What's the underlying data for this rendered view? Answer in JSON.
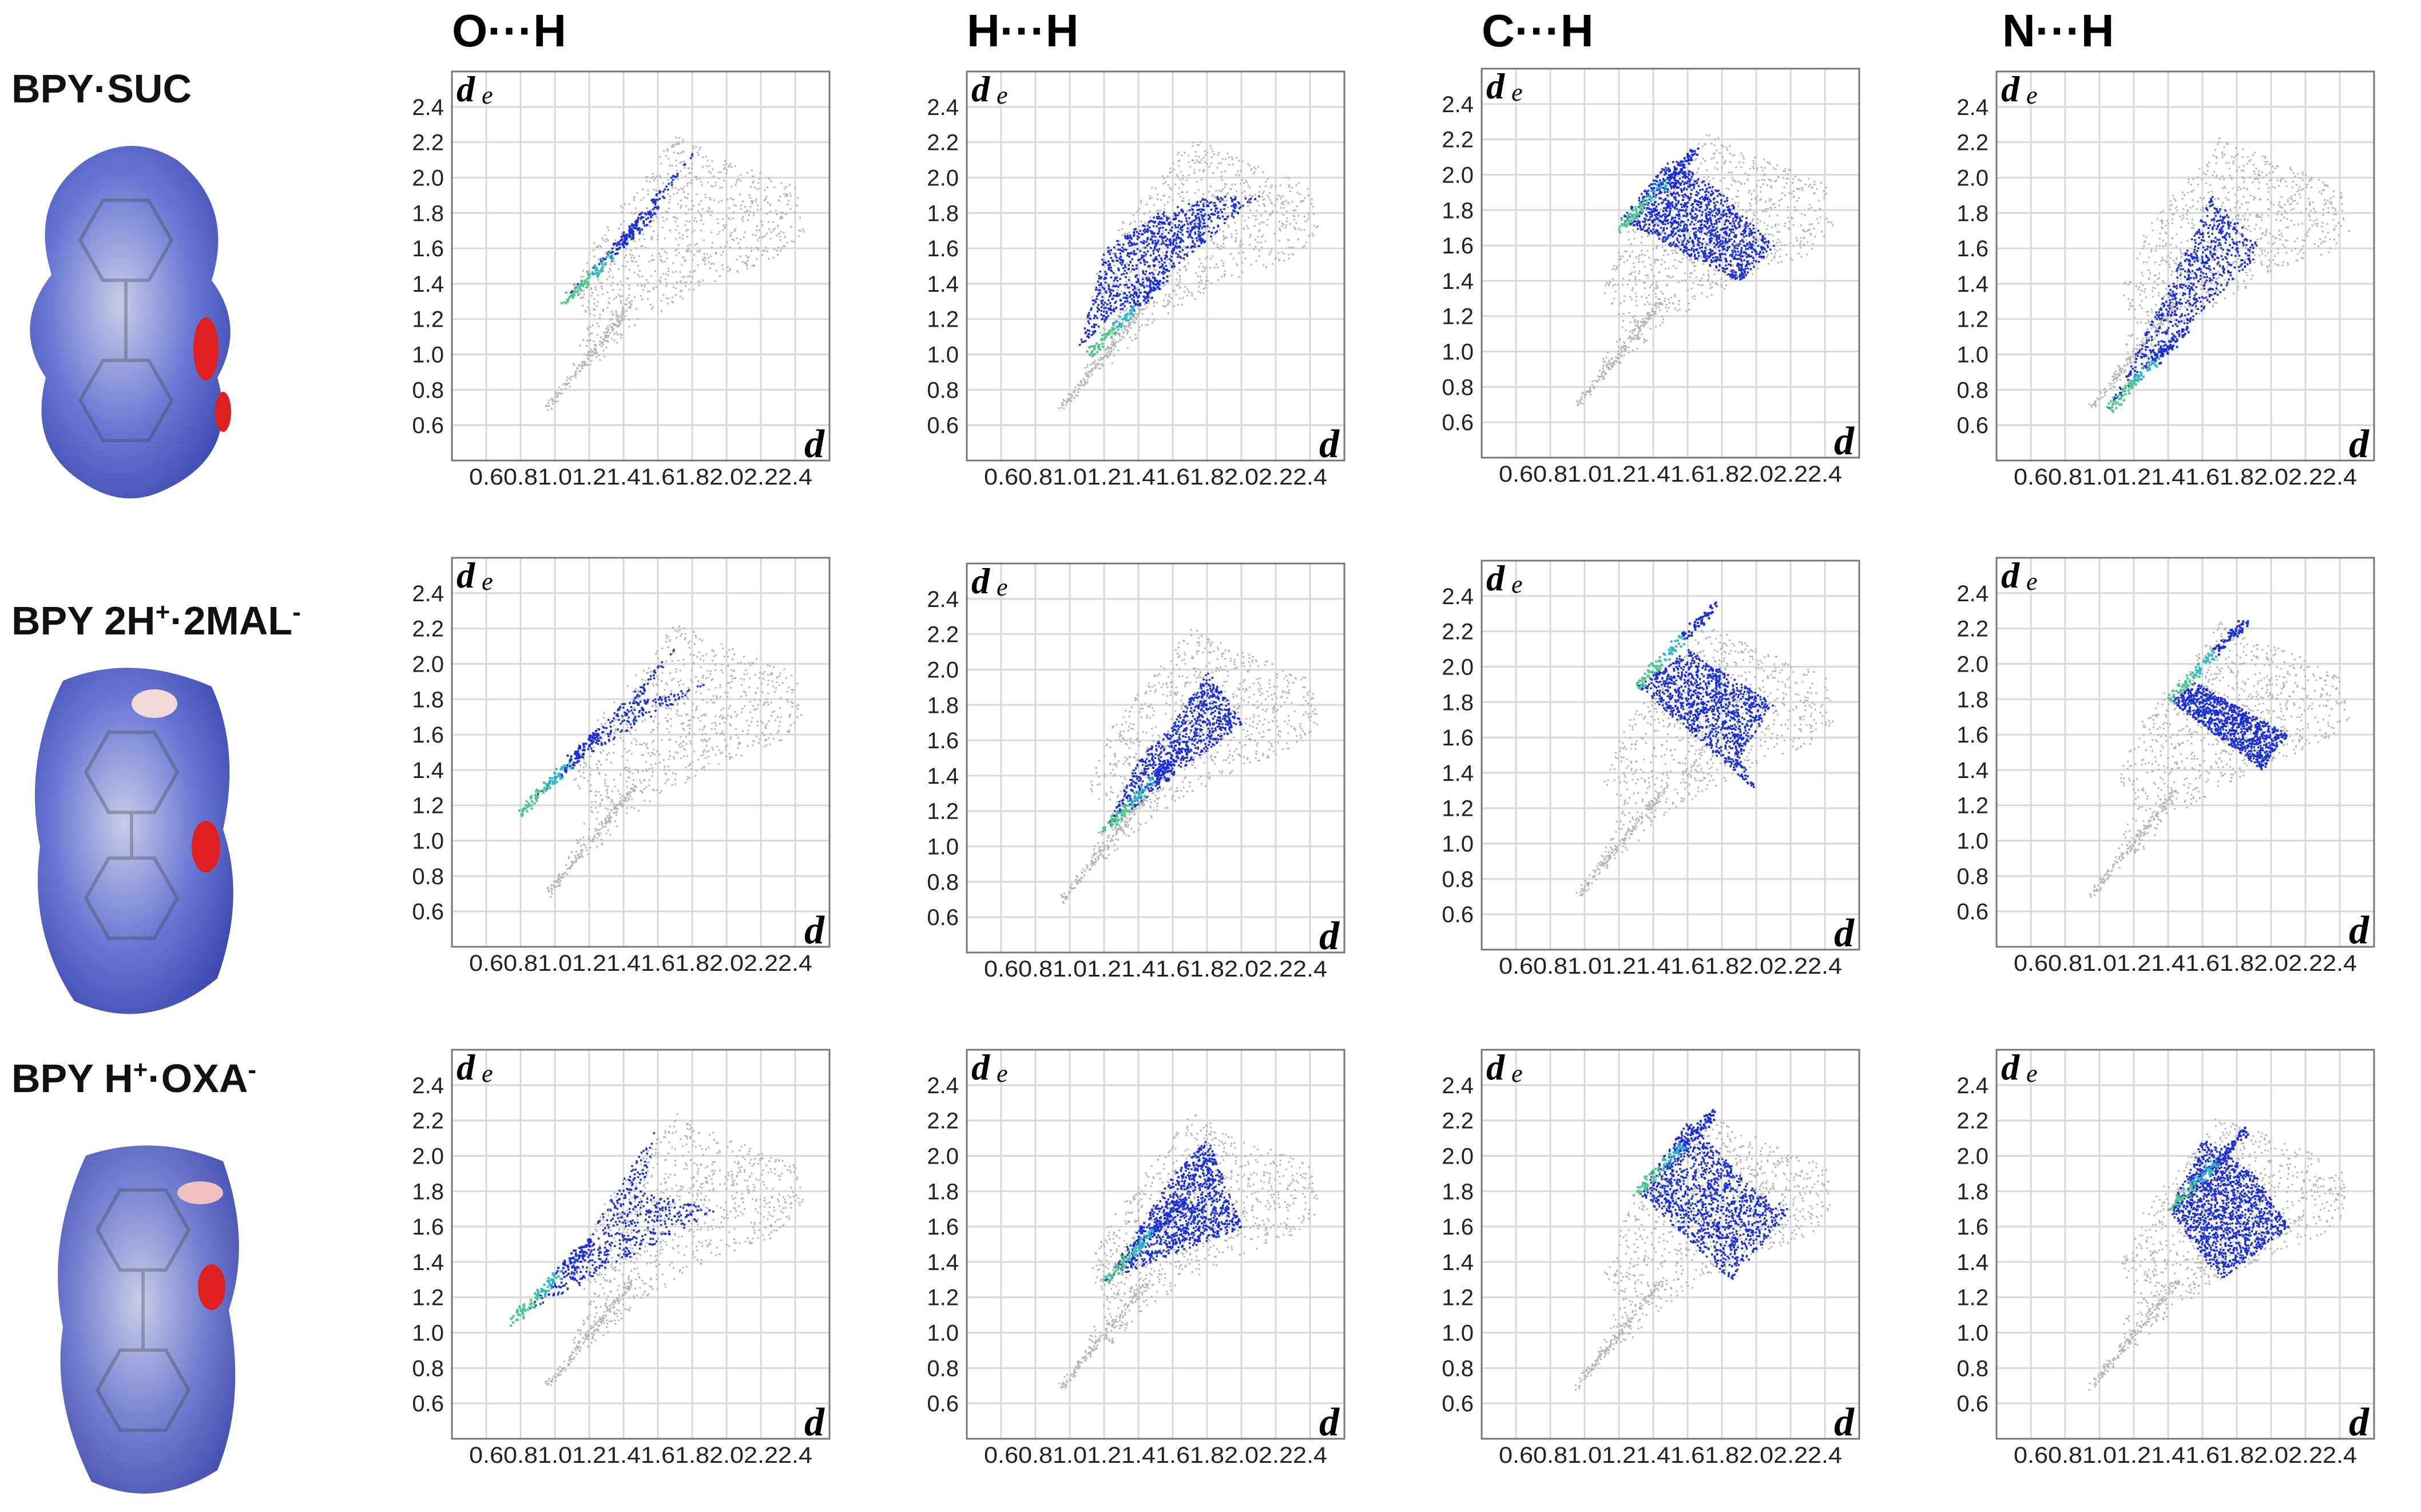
{
  "columns": [
    "O···H",
    "H···H",
    "C···H",
    "N···H"
  ],
  "rows": [
    {
      "label": "BPY·SUC",
      "label_sup": []
    },
    {
      "label": "BPY 2H⁺·2MAL⁻"
    },
    {
      "label": "BPY H⁺·OXA⁻"
    }
  ],
  "row_label_parts": [
    [
      {
        "t": "BPY·SUC"
      }
    ],
    [
      {
        "t": "BPY 2H"
      },
      {
        "s": "+"
      },
      {
        "t": "·2MAL"
      },
      {
        "s": "-"
      }
    ],
    [
      {
        "t": "BPY H"
      },
      {
        "s": "+"
      },
      {
        "t": "·OXA"
      },
      {
        "s": "-"
      }
    ]
  ],
  "colors": {
    "grey": "#b4b4b4",
    "blue": "#1a2fd6",
    "cyan": "#2fb8c8",
    "green": "#4cc88a",
    "red": "#e02020",
    "surface_blue": "#6a78d4"
  },
  "chart_data": {
    "type": "scatter",
    "description_kind": "Hirshfeld 2D fingerprint plots",
    "x_axis": {
      "label": "d",
      "ticks": [
        "0.6",
        "0.8",
        "1.0",
        "1.2",
        "1.4",
        "1.6",
        "1.8",
        "2.0",
        "2.2",
        "2.4"
      ],
      "tick_text": "0.60.81.01.21.41.61.82.02.22.4",
      "range": [
        0.4,
        2.6
      ]
    },
    "y_axis": {
      "label": "d",
      "ticks": [
        "0.6",
        "0.8",
        "1.0",
        "1.2",
        "1.4",
        "1.6",
        "1.8",
        "2.0",
        "2.2",
        "2.4"
      ],
      "range": [
        0.4,
        2.6
      ]
    },
    "corner_label_y": "d",
    "corner_label_y_suffix": "e",
    "corner_label_x": "d",
    "panels": [
      {
        "row": 0,
        "col": 0,
        "contact": "O···H",
        "highlight": [
          [
            1.05,
            1.32
          ],
          [
            1.3,
            1.55
          ],
          [
            1.55,
            1.75
          ],
          [
            1.7,
            2.0
          ],
          [
            1.85,
            2.2
          ]
        ],
        "tip": [
          1.05,
          1.3
        ]
      },
      {
        "row": 0,
        "col": 1,
        "contact": "H···H",
        "highlight": [
          [
            1.05,
            1.05
          ],
          [
            1.2,
            1.6
          ],
          [
            1.5,
            1.8
          ],
          [
            1.8,
            1.9
          ],
          [
            2.1,
            1.9
          ]
        ],
        "tip": [
          1.1,
          1.0
        ]
      },
      {
        "row": 0,
        "col": 2,
        "contact": "C···H",
        "highlight": [
          [
            1.2,
            1.75
          ],
          [
            1.5,
            2.1
          ],
          [
            1.8,
            1.9
          ],
          [
            1.9,
            1.4
          ],
          [
            2.1,
            1.6
          ]
        ],
        "tip": [
          1.2,
          1.7
        ]
      },
      {
        "row": 0,
        "col": 3,
        "contact": "N···H",
        "highlight": [
          [
            1.05,
            0.7
          ],
          [
            1.3,
            1.2
          ],
          [
            1.5,
            1.6
          ],
          [
            1.65,
            1.9
          ],
          [
            1.95,
            1.6
          ]
        ],
        "tip": [
          1.05,
          0.7
        ]
      },
      {
        "row": 1,
        "col": 0,
        "contact": "O···H",
        "highlight": [
          [
            0.8,
            1.17
          ],
          [
            1.2,
            1.5
          ],
          [
            1.5,
            1.8
          ],
          [
            1.7,
            2.1
          ],
          [
            1.9,
            1.9
          ]
        ],
        "tip": [
          0.8,
          1.17
        ]
      },
      {
        "row": 1,
        "col": 1,
        "contact": "H···H",
        "highlight": [
          [
            1.2,
            1.1
          ],
          [
            1.4,
            1.5
          ],
          [
            1.6,
            1.7
          ],
          [
            1.8,
            2.0
          ],
          [
            2.0,
            1.7
          ]
        ],
        "tip": [
          1.2,
          1.1
        ]
      },
      {
        "row": 1,
        "col": 2,
        "contact": "C···H",
        "highlight": [
          [
            1.3,
            1.9
          ],
          [
            1.6,
            2.1
          ],
          [
            1.9,
            1.5
          ],
          [
            2.1,
            1.8
          ],
          [
            2.0,
            1.3
          ]
        ],
        "tip": [
          1.3,
          1.9
        ]
      },
      {
        "row": 1,
        "col": 3,
        "contact": "N···H",
        "highlight": [
          [
            1.4,
            1.8
          ],
          [
            1.55,
            1.9
          ],
          [
            1.95,
            1.4
          ],
          [
            2.1,
            1.6
          ],
          [
            2.0,
            1.5
          ]
        ],
        "tip": [
          1.4,
          1.8
        ]
      },
      {
        "row": 2,
        "col": 0,
        "contact": "O···H",
        "highlight": [
          [
            0.75,
            1.07
          ],
          [
            1.1,
            1.4
          ],
          [
            1.5,
            1.8
          ],
          [
            1.6,
            2.2
          ],
          [
            1.95,
            1.7
          ]
        ],
        "tip": [
          0.75,
          1.07
        ]
      },
      {
        "row": 2,
        "col": 1,
        "contact": "H···H",
        "highlight": [
          [
            1.2,
            1.3
          ],
          [
            1.4,
            1.6
          ],
          [
            1.6,
            1.9
          ],
          [
            1.8,
            2.1
          ],
          [
            2.0,
            1.6
          ]
        ],
        "tip": [
          1.2,
          1.3
        ]
      },
      {
        "row": 2,
        "col": 2,
        "contact": "C···H",
        "highlight": [
          [
            1.3,
            1.8
          ],
          [
            1.6,
            2.2
          ],
          [
            2.0,
            1.8
          ],
          [
            2.2,
            1.7
          ],
          [
            1.85,
            1.3
          ]
        ],
        "tip": [
          1.3,
          1.8
        ]
      },
      {
        "row": 2,
        "col": 3,
        "contact": "N···H",
        "highlight": [
          [
            1.4,
            1.7
          ],
          [
            1.6,
            2.1
          ],
          [
            1.9,
            1.9
          ],
          [
            2.1,
            1.6
          ],
          [
            1.7,
            1.3
          ]
        ],
        "tip": [
          1.4,
          1.7
        ]
      }
    ]
  }
}
